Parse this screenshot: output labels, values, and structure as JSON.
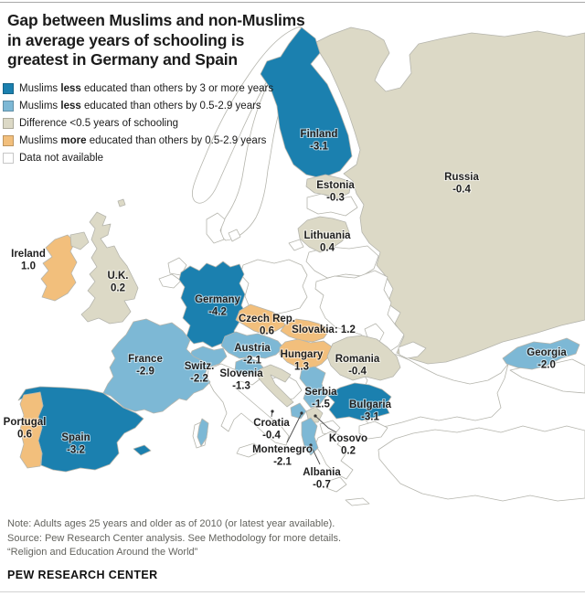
{
  "title_lines": [
    "Gap between Muslims and non-Muslims",
    "in average years of schooling is",
    "greatest in Germany and Spain"
  ],
  "colors": {
    "much_less": "#1b80af",
    "less": "#7db8d5",
    "similar": "#dcd9c6",
    "more": "#f2bf7c",
    "no_data": "#ffffff"
  },
  "legend": [
    {
      "category": "much_less",
      "pre": "Muslims ",
      "bold": "less",
      "post": " educated than others by 3 or more years"
    },
    {
      "category": "less",
      "pre": "Muslims ",
      "bold": "less",
      "post": " educated than others by 0.5-2.9 years"
    },
    {
      "category": "similar",
      "pre": "Difference <0.5 years of schooling",
      "bold": "",
      "post": ""
    },
    {
      "category": "more",
      "pre": "Muslims ",
      "bold": "more",
      "post": " educated than others by 0.5-2.9 years"
    },
    {
      "category": "no_data",
      "pre": "Data not available",
      "bold": "",
      "post": ""
    }
  ],
  "countries": [
    {
      "id": "finland",
      "label": "Finland",
      "value": "-3.1",
      "category": "much_less"
    },
    {
      "id": "russia",
      "label": "Russia",
      "value": "-0.4",
      "category": "similar"
    },
    {
      "id": "estonia",
      "label": "Estonia",
      "value": "-0.3",
      "category": "similar"
    },
    {
      "id": "lithuania",
      "label": "Lithuania",
      "value": "0.4",
      "category": "similar"
    },
    {
      "id": "ireland",
      "label": "Ireland",
      "value": "1.0",
      "category": "more"
    },
    {
      "id": "uk",
      "label": "U.K.",
      "value": "0.2",
      "category": "similar"
    },
    {
      "id": "germany",
      "label": "Germany",
      "value": "-4.2",
      "category": "much_less"
    },
    {
      "id": "czech",
      "label": "Czech Rep.",
      "value": "0.6",
      "category": "more"
    },
    {
      "id": "slovakia",
      "label": "Slovakia",
      "value": "1.2",
      "category": "more",
      "inline": true
    },
    {
      "id": "france",
      "label": "France",
      "value": "-2.9",
      "category": "less"
    },
    {
      "id": "austria",
      "label": "Austria",
      "value": "-2.1",
      "category": "less"
    },
    {
      "id": "hungary",
      "label": "Hungary",
      "value": "1.3",
      "category": "more"
    },
    {
      "id": "switzerland",
      "label": "Switz.",
      "value": "-2.2",
      "category": "less"
    },
    {
      "id": "slovenia",
      "label": "Slovenia",
      "value": "-1.3",
      "category": "less"
    },
    {
      "id": "romania",
      "label": "Romania",
      "value": "-0.4",
      "category": "similar"
    },
    {
      "id": "georgia",
      "label": "Georgia",
      "value": "-2.0",
      "category": "less"
    },
    {
      "id": "serbia",
      "label": "Serbia",
      "value": "-1.5",
      "category": "less"
    },
    {
      "id": "bulgaria",
      "label": "Bulgaria",
      "value": "-3.1",
      "category": "much_less"
    },
    {
      "id": "portugal",
      "label": "Portugal",
      "value": "0.6",
      "category": "more"
    },
    {
      "id": "spain",
      "label": "Spain",
      "value": "-3.2",
      "category": "much_less"
    },
    {
      "id": "croatia",
      "label": "Croatia",
      "value": "-0.4",
      "category": "similar"
    },
    {
      "id": "kosovo",
      "label": "Kosovo",
      "value": "0.2",
      "category": "similar"
    },
    {
      "id": "montenegro",
      "label": "Montenegro",
      "value": "-2.1",
      "category": "less"
    },
    {
      "id": "albania",
      "label": "Albania",
      "value": "-0.7",
      "category": "less"
    }
  ],
  "footer": {
    "note": "Note: Adults ages 25 years and older as of 2010 (or latest year available).",
    "source": "Source: Pew Research Center analysis. See Methodology for more details.",
    "citation": "“Religion and Education Around the World”",
    "brand": "PEW RESEARCH CENTER"
  }
}
